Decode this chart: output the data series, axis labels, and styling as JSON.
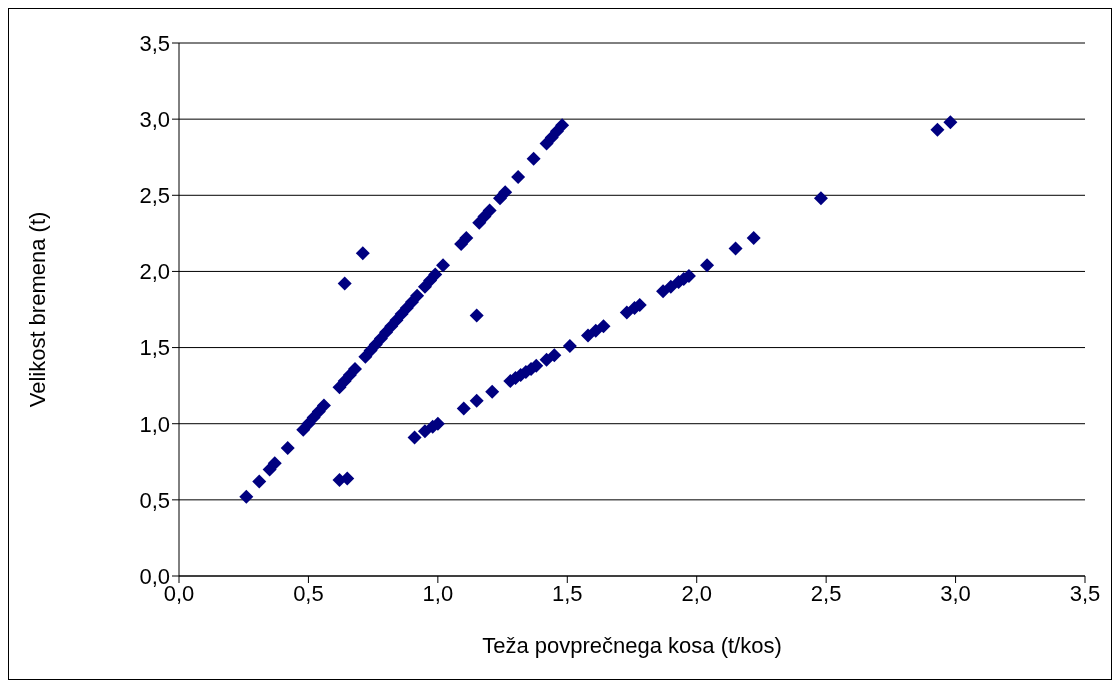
{
  "chart_data": {
    "type": "scatter",
    "xlabel": "Teža povprečnega kosa (t/kos)",
    "ylabel": "Velikost bremena (t)",
    "xlim": [
      0,
      3.5
    ],
    "ylim": [
      0,
      3.5
    ],
    "xticks": [
      {
        "value": 0,
        "label": "0,0"
      },
      {
        "value": 0.5,
        "label": "0,5"
      },
      {
        "value": 1,
        "label": "1,0"
      },
      {
        "value": 1.5,
        "label": "1,5"
      },
      {
        "value": 2,
        "label": "2,0"
      },
      {
        "value": 2.5,
        "label": "2,5"
      },
      {
        "value": 3,
        "label": "3,0"
      },
      {
        "value": 3.5,
        "label": "3,5"
      }
    ],
    "yticks": [
      {
        "value": 0,
        "label": "0,0"
      },
      {
        "value": 0.5,
        "label": "0,5"
      },
      {
        "value": 1,
        "label": "1,0"
      },
      {
        "value": 1.5,
        "label": "1,5"
      },
      {
        "value": 2,
        "label": "2,0"
      },
      {
        "value": 2.5,
        "label": "2,5"
      },
      {
        "value": 3,
        "label": "3,0"
      },
      {
        "value": 3.5,
        "label": "3,5"
      }
    ],
    "grid": "y",
    "marker": "diamond",
    "legend": false,
    "series": [
      {
        "color": "#000080",
        "x": [
          0.26,
          0.31,
          0.35,
          0.37,
          0.42,
          0.48,
          0.5,
          0.52,
          0.54,
          0.56,
          0.62,
          0.64,
          0.66,
          0.68,
          0.72,
          0.74,
          0.76,
          0.78,
          0.8,
          0.82,
          0.84,
          0.86,
          0.88,
          0.9,
          0.92,
          0.95,
          0.97,
          0.99,
          1.02,
          1.09,
          1.11,
          1.16,
          1.18,
          1.2,
          1.24,
          1.26,
          1.31,
          1.37,
          1.42,
          1.44,
          1.46,
          1.48,
          0.91,
          0.95,
          0.98,
          1.0,
          1.1,
          1.15,
          1.21,
          1.28,
          1.3,
          1.32,
          1.34,
          1.36,
          1.38,
          1.42,
          1.45,
          1.51,
          1.58,
          1.61,
          1.64,
          1.73,
          1.76,
          1.78,
          1.87,
          1.9,
          1.93,
          1.95,
          1.97,
          2.04,
          2.15,
          2.22,
          2.48,
          2.93,
          2.98,
          0.64,
          0.71,
          1.15,
          0.62,
          0.65
        ],
        "values": [
          0.52,
          0.62,
          0.7,
          0.74,
          0.84,
          0.96,
          1.0,
          1.04,
          1.08,
          1.12,
          1.24,
          1.28,
          1.32,
          1.36,
          1.44,
          1.48,
          1.52,
          1.56,
          1.6,
          1.64,
          1.68,
          1.72,
          1.76,
          1.8,
          1.84,
          1.9,
          1.94,
          1.98,
          2.04,
          2.18,
          2.22,
          2.32,
          2.36,
          2.4,
          2.48,
          2.52,
          2.62,
          2.74,
          2.84,
          2.88,
          2.92,
          2.96,
          0.91,
          0.95,
          0.98,
          1.0,
          1.1,
          1.15,
          1.21,
          1.28,
          1.3,
          1.32,
          1.34,
          1.36,
          1.38,
          1.42,
          1.45,
          1.51,
          1.58,
          1.61,
          1.64,
          1.73,
          1.76,
          1.78,
          1.87,
          1.9,
          1.93,
          1.95,
          1.97,
          2.04,
          2.15,
          2.22,
          2.48,
          2.93,
          2.98,
          1.92,
          2.12,
          1.71,
          0.63,
          0.64
        ]
      }
    ]
  }
}
